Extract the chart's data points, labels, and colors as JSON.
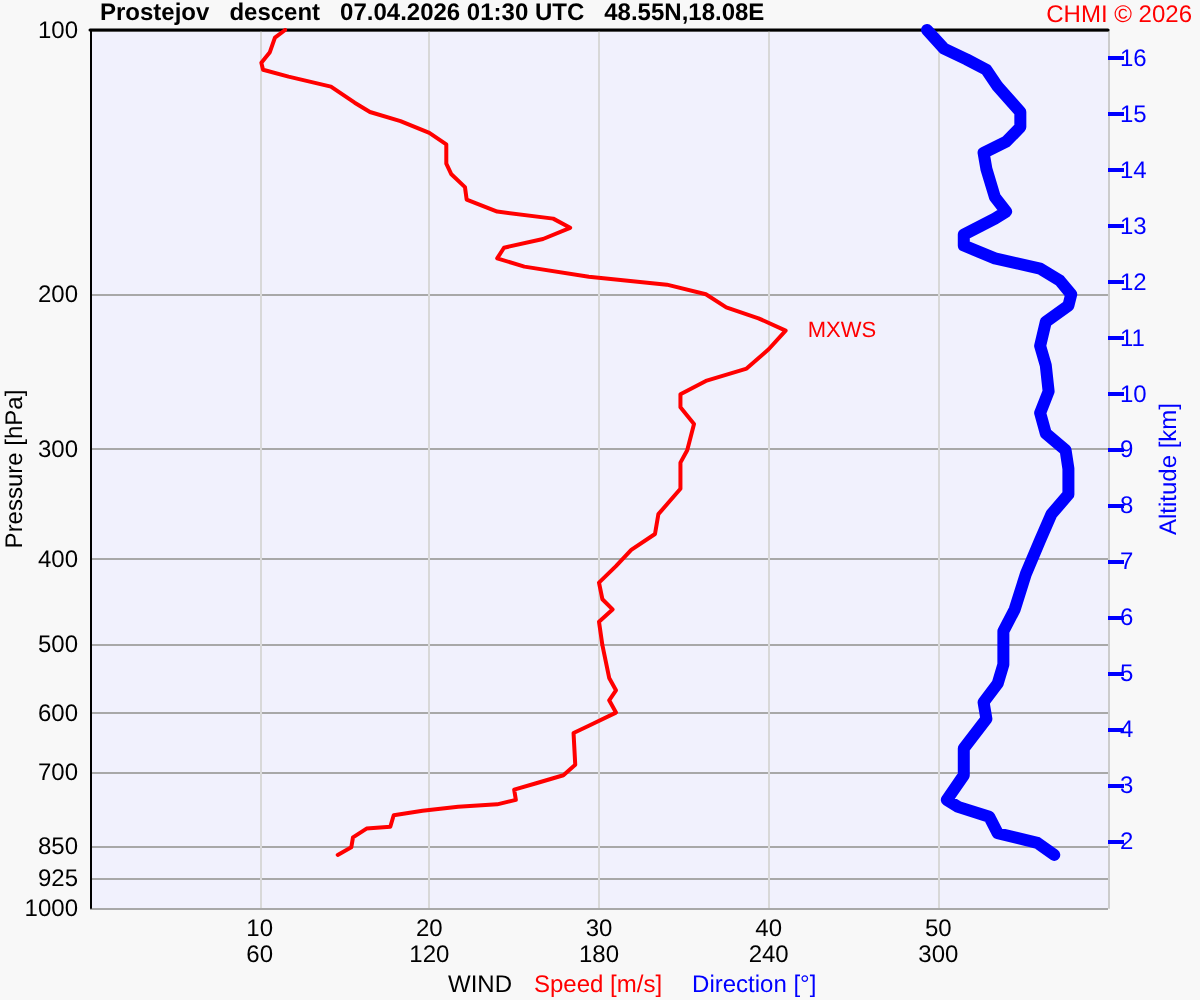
{
  "chart_data": {
    "type": "line",
    "title": "Prostejov   descent   07.04.2026 01:30 UTC   48.55N,18.08E",
    "xlabel": "WIND",
    "ylabel": "Pressure [hPa]",
    "y2label": "Altitude [km]",
    "annotations": [
      "CHMI © 2026",
      {
        "text": "MXWS",
        "x": 41,
        "y": 220
      }
    ],
    "xlim": [
      0,
      60
    ],
    "xticks": [
      10,
      20,
      30,
      40,
      50
    ],
    "x2lim": [
      0,
      360
    ],
    "x2ticks": [
      60,
      120,
      180,
      240,
      300
    ],
    "ylim": [
      1000,
      100
    ],
    "yticks": [
      100,
      200,
      300,
      400,
      500,
      600,
      700,
      850,
      925,
      1000
    ],
    "log": "y",
    "y2lim": [
      0.8,
      16.5
    ],
    "y2ticks": [
      2,
      3,
      4,
      5,
      6,
      7,
      8,
      9,
      10,
      11,
      12,
      13,
      14,
      15,
      16
    ],
    "grid": true,
    "legend": "bottom",
    "marker": "none",
    "line_style": "solid",
    "series": [
      {
        "name": "Speed [m/s]",
        "color": "#ff0000",
        "x": [
          11.5,
          10.9,
          10.6,
          10.1,
          10.2,
          11.7,
          14.2,
          15.6,
          16.5,
          18.3,
          20.0,
          21.0,
          21.0,
          21.3,
          22.1,
          22.2,
          24.0,
          27.3,
          28.3,
          26.7,
          24.4,
          24.0,
          25.6,
          29.4,
          34.0,
          36.3,
          37.5,
          39.4,
          41.0,
          40.0,
          38.7,
          36.3,
          34.8,
          34.8,
          35.6,
          35.2,
          34.8,
          34.8,
          33.5,
          33.3,
          31.9,
          31.0,
          30.0,
          30.2,
          30.8,
          30.0,
          30.2,
          30.6,
          31.0,
          30.6,
          31.0,
          29.4,
          28.5,
          28.6,
          27.9,
          26.3,
          25.0,
          25.1,
          24.0,
          21.7,
          19.6,
          17.9,
          17.7,
          16.3,
          15.5,
          15.4,
          14.6
        ],
        "values": [
          100,
          102,
          106,
          109,
          111,
          113,
          116,
          121,
          124,
          127,
          131,
          135,
          142,
          146,
          151,
          156,
          161,
          164,
          168,
          173,
          177,
          182,
          186,
          191,
          195,
          200,
          207,
          213,
          220,
          231,
          243,
          251,
          260,
          269,
          281,
          301,
          311,
          333,
          356,
          375,
          391,
          408,
          426,
          445,
          457,
          472,
          502,
          547,
          565,
          580,
          599,
          620,
          632,
          687,
          706,
          721,
          733,
          753,
          762,
          767,
          775,
          784,
          808,
          812,
          831,
          853,
          870
        ]
      },
      {
        "name": "Direction [°]",
        "color": "#0000ff",
        "axis": "x2",
        "x": [
          296,
          302,
          310,
          317,
          321,
          329,
          329,
          324,
          316,
          317,
          320,
          324,
          320,
          309,
          309,
          320,
          336,
          343,
          347,
          346,
          338,
          336,
          338,
          339,
          336,
          338,
          345,
          346,
          346,
          340,
          336,
          331,
          327,
          323,
          323,
          321,
          316,
          317,
          309,
          309,
          303,
          307,
          318,
          321,
          335,
          341
        ],
        "values": [
          100,
          105,
          108,
          111,
          116,
          124,
          129,
          134,
          138,
          144,
          155,
          161,
          164,
          171,
          176,
          182,
          187,
          193,
          200,
          206,
          215,
          229,
          241,
          258,
          273,
          288,
          301,
          316,
          338,
          356,
          381,
          416,
          457,
          484,
          528,
          555,
          583,
          609,
          658,
          706,
          753,
          767,
          787,
          822,
          843,
          870
        ]
      }
    ]
  }
}
